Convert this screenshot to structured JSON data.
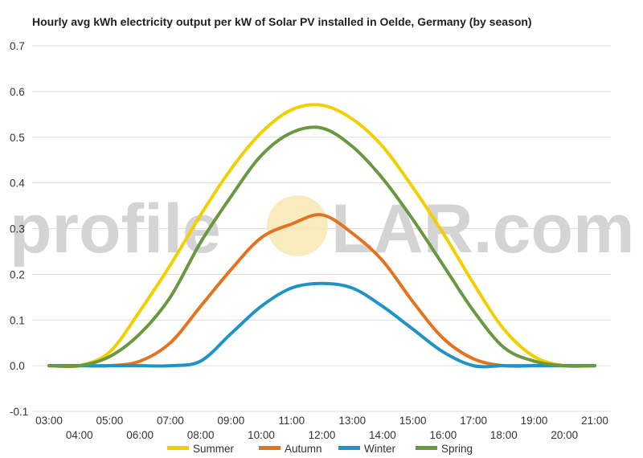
{
  "chart_data": {
    "type": "line",
    "title": "Hourly avg kWh electricity output per kW of Solar PV installed in Oelde, Germany (by season)",
    "watermark": {
      "left": "profile",
      "right": "LAR.com"
    },
    "ylim": [
      -0.1,
      0.7
    ],
    "yticks": [
      "-0.1",
      "0.0",
      "0.1",
      "0.2",
      "0.3",
      "0.4",
      "0.5",
      "0.6",
      "0.7"
    ],
    "xlim": [
      3,
      21
    ],
    "xticks": [
      "03:00",
      "04:00",
      "05:00",
      "06:00",
      "07:00",
      "08:00",
      "09:00",
      "10:00",
      "11:00",
      "12:00",
      "13:00",
      "14:00",
      "15:00",
      "16:00",
      "17:00",
      "18:00",
      "19:00",
      "20:00",
      "21:00"
    ],
    "grid": true,
    "legend_position": "bottom",
    "x": [
      3,
      4,
      5,
      6,
      7,
      8,
      9,
      10,
      11,
      12,
      13,
      14,
      15,
      16,
      17,
      18,
      19,
      20,
      21
    ],
    "series": [
      {
        "name": "Summer",
        "color": "#f2cf00",
        "values": [
          0.0,
          0.0,
          0.03,
          0.12,
          0.22,
          0.33,
          0.43,
          0.51,
          0.56,
          0.57,
          0.54,
          0.48,
          0.39,
          0.29,
          0.18,
          0.08,
          0.02,
          0.0,
          0.0
        ]
      },
      {
        "name": "Autumn",
        "color": "#e3731f",
        "values": [
          0.0,
          0.0,
          0.0,
          0.01,
          0.05,
          0.13,
          0.21,
          0.28,
          0.31,
          0.33,
          0.29,
          0.23,
          0.14,
          0.06,
          0.015,
          0.0,
          0.0,
          0.0,
          0.0
        ]
      },
      {
        "name": "Winter",
        "color": "#1f93c6",
        "values": [
          0.0,
          0.0,
          0.0,
          0.0,
          0.0,
          0.01,
          0.07,
          0.13,
          0.17,
          0.18,
          0.17,
          0.13,
          0.08,
          0.03,
          0.0,
          0.0,
          0.0,
          0.0,
          0.0
        ]
      },
      {
        "name": "Spring",
        "color": "#6a9840",
        "values": [
          0.0,
          0.0,
          0.02,
          0.07,
          0.15,
          0.27,
          0.37,
          0.46,
          0.51,
          0.52,
          0.48,
          0.41,
          0.32,
          0.22,
          0.12,
          0.04,
          0.01,
          0.0,
          0.0
        ]
      }
    ]
  }
}
